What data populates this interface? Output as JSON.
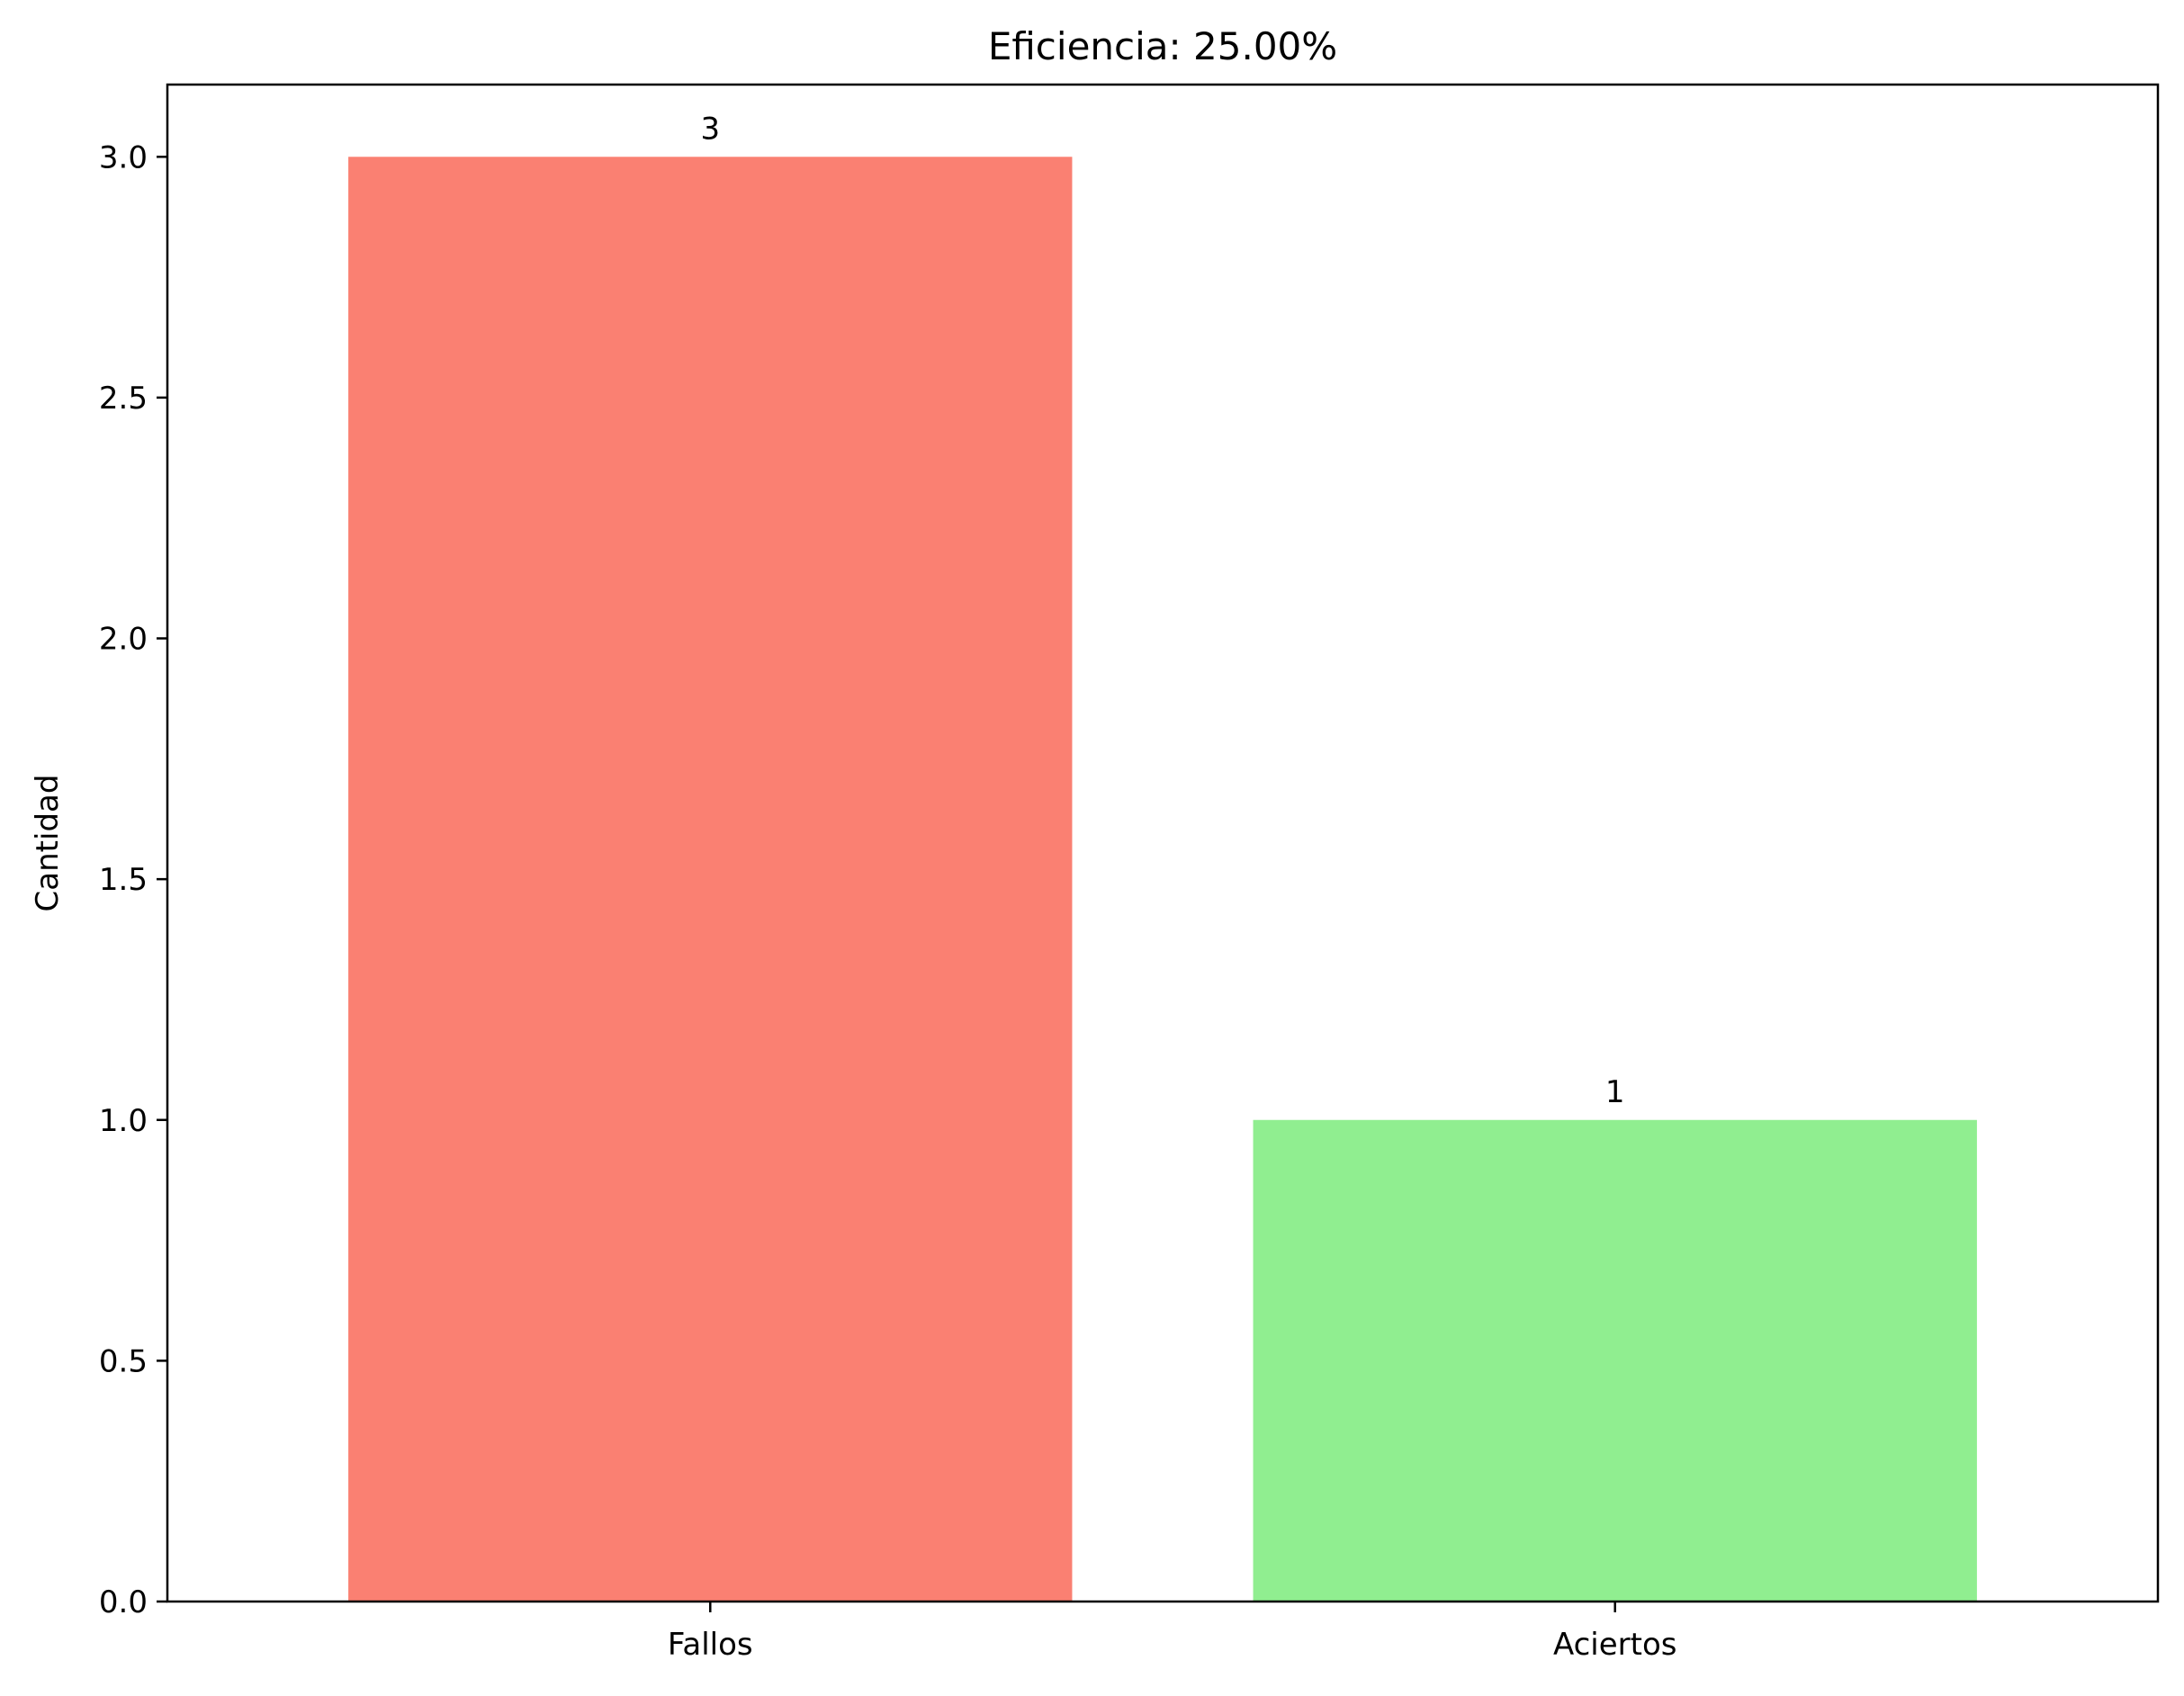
{
  "chart_data": {
    "type": "bar",
    "title": "Eficiencia: 25.00%",
    "xlabel": "",
    "ylabel": "Cantidad",
    "categories": [
      "Fallos",
      "Aciertos"
    ],
    "values": [
      3,
      1
    ],
    "data_labels": [
      "3",
      "1"
    ],
    "colors": [
      "#FA8072",
      "#90EE90"
    ],
    "ylim": [
      0,
      3.15
    ],
    "yticks": [
      0.0,
      0.5,
      1.0,
      1.5,
      2.0,
      2.5,
      3.0
    ],
    "ytick_labels": [
      "0.0",
      "0.5",
      "1.0",
      "1.5",
      "2.0",
      "2.5",
      "3.0"
    ],
    "grid": false,
    "legend": "none"
  }
}
